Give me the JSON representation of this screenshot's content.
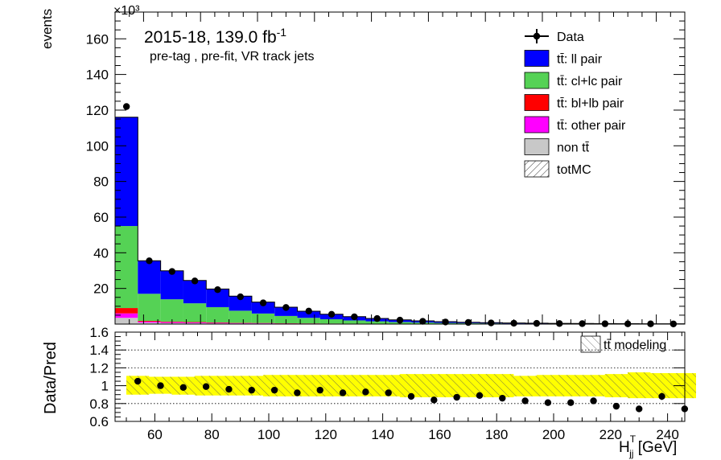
{
  "chart_data": [
    {
      "type": "bar",
      "stacked": true,
      "exponent_label": "×10³",
      "xlim": [
        50,
        250
      ],
      "ylim": [
        0,
        175
      ],
      "y_unit_multiplier": 1000,
      "ylabel": "events",
      "yticks": [
        20,
        40,
        60,
        80,
        100,
        120,
        140,
        160
      ],
      "xticks": [
        60,
        80,
        100,
        120,
        140,
        160,
        180,
        200,
        220,
        240
      ],
      "annotations": {
        "lumi_prefix": "2015-18, 139.0 fb",
        "lumi_exp": "-1",
        "region": "pre-tag ,  pre-fit, VR track jets"
      },
      "bin_edges": [
        50,
        58,
        66,
        74,
        82,
        90,
        98,
        106,
        114,
        122,
        130,
        138,
        146,
        154,
        162,
        170,
        178,
        186,
        194,
        202,
        210,
        218,
        226,
        234,
        242,
        250
      ],
      "series": [
        {
          "name": "non tt̄",
          "color": "#c8c8c8",
          "values": [
            3.5,
            0.8,
            0.6,
            0.5,
            0.4,
            0.3,
            0.3,
            0.2,
            0.2,
            0.15,
            0.12,
            0.1,
            0.08,
            0.07,
            0.05,
            0.05,
            0.04,
            0.03,
            0.03,
            0.02,
            0.02,
            0.02,
            0.01,
            0.01,
            0.01
          ]
        },
        {
          "name": "tt̄: other pair",
          "color": "#ff00ff",
          "values": [
            2.5,
            0.6,
            0.5,
            0.4,
            0.3,
            0.25,
            0.2,
            0.15,
            0.12,
            0.1,
            0.08,
            0.06,
            0.05,
            0.04,
            0.03,
            0.03,
            0.02,
            0.02,
            0.02,
            0.01,
            0.01,
            0.01,
            0.01,
            0.01,
            0.01
          ]
        },
        {
          "name": "tt̄: bl+lb pair",
          "color": "#ff0000",
          "values": [
            3.0,
            0.4,
            0.3,
            0.25,
            0.2,
            0.15,
            0.12,
            0.1,
            0.08,
            0.06,
            0.05,
            0.04,
            0.03,
            0.02,
            0.02,
            0.02,
            0.01,
            0.01,
            0.01,
            0.01,
            0.01,
            0.01,
            0.01,
            0.01,
            0.01
          ]
        },
        {
          "name": "tt̄: cl+lc pair",
          "color": "#55d255",
          "values": [
            46,
            15.2,
            12.5,
            10.5,
            8.6,
            6.8,
            5.3,
            4.1,
            3.1,
            2.4,
            1.8,
            1.35,
            1.0,
            0.75,
            0.55,
            0.42,
            0.32,
            0.25,
            0.2,
            0.16,
            0.13,
            0.1,
            0.08,
            0.07,
            0.06
          ]
        },
        {
          "name": "tt̄: ll pair",
          "color": "#0000ff",
          "values": [
            61,
            18.5,
            16.0,
            12.8,
            10.2,
            8.2,
            6.4,
            4.9,
            3.7,
            2.8,
            2.1,
            1.6,
            1.2,
            0.9,
            0.68,
            0.52,
            0.4,
            0.31,
            0.24,
            0.19,
            0.15,
            0.12,
            0.1,
            0.08,
            0.07
          ]
        }
      ],
      "data": {
        "name": "Data",
        "values": [
          122,
          35.5,
          29.5,
          24.2,
          19.3,
          15.3,
          11.9,
          9.3,
          7.3,
          5.5,
          4.1,
          3.1,
          2.2,
          1.55,
          1.17,
          0.9,
          0.65,
          0.5,
          0.4,
          0.31,
          0.25,
          0.18,
          0.14,
          0.13,
          0.1
        ]
      },
      "legend": {
        "placement": "top-right",
        "entries": [
          {
            "label": "Data",
            "style": "marker"
          },
          {
            "label": "tt̄: ll pair",
            "style": "box",
            "color": "#0000ff"
          },
          {
            "label": "tt̄: cl+lc pair",
            "style": "box",
            "color": "#55d255"
          },
          {
            "label": "tt̄: bl+lb pair",
            "style": "box",
            "color": "#ff0000"
          },
          {
            "label": "tt̄: other pair",
            "style": "box",
            "color": "#ff00ff"
          },
          {
            "label": "non tt̄",
            "style": "box",
            "color": "#c8c8c8"
          },
          {
            "label": "totMC",
            "style": "hatch"
          }
        ]
      }
    },
    {
      "type": "scatter",
      "xlim": [
        50,
        250
      ],
      "ylim": [
        0.6,
        1.6
      ],
      "xlabel": "H",
      "xlabel_sup": "T",
      "xlabel_sub": "jj",
      "xlabel_unit": " [GeV]",
      "ylabel": "Data/Pred",
      "yticks": [
        0.6,
        0.8,
        1,
        1.2,
        1.4,
        1.6
      ],
      "ytick_labels": [
        "0.6",
        "0.8",
        "1",
        "1.2",
        "1.4",
        "1.6"
      ],
      "xticks": [
        60,
        80,
        100,
        120,
        140,
        160,
        180,
        200,
        220,
        240
      ],
      "gridlines_y": [
        0.8,
        1.0,
        1.2,
        1.4
      ],
      "grid": "dotted horizontal",
      "x": [
        54,
        62,
        70,
        78,
        86,
        94,
        102,
        110,
        118,
        126,
        134,
        142,
        150,
        158,
        166,
        174,
        182,
        190,
        198,
        206,
        214,
        222,
        230,
        238,
        246
      ],
      "ratio": [
        1.05,
        1.0,
        0.98,
        0.99,
        0.96,
        0.95,
        0.95,
        0.92,
        0.95,
        0.92,
        0.93,
        0.92,
        0.88,
        0.84,
        0.87,
        0.89,
        0.86,
        0.83,
        0.81,
        0.81,
        0.83,
        0.77,
        0.74,
        0.88,
        0.74
      ],
      "ratio_err": [
        0,
        0,
        0,
        0,
        0,
        0,
        0,
        0,
        0,
        0,
        0,
        0,
        0,
        0,
        0,
        0,
        0,
        0,
        0,
        0,
        0,
        0,
        0,
        0.04,
        0
      ],
      "band_lo": [
        0.9,
        0.91,
        0.9,
        0.89,
        0.89,
        0.89,
        0.88,
        0.88,
        0.88,
        0.88,
        0.88,
        0.88,
        0.87,
        0.87,
        0.87,
        0.87,
        0.87,
        0.88,
        0.88,
        0.88,
        0.88,
        0.87,
        0.86,
        0.86,
        0.86
      ],
      "band_hi": [
        1.11,
        1.1,
        1.1,
        1.11,
        1.11,
        1.11,
        1.12,
        1.12,
        1.12,
        1.12,
        1.12,
        1.12,
        1.13,
        1.13,
        1.13,
        1.13,
        1.13,
        1.11,
        1.12,
        1.12,
        1.12,
        1.13,
        1.15,
        1.14,
        1.14
      ],
      "band_color": "#ffff00",
      "legend": {
        "label": "tt̄ modeling",
        "placement": "top-right"
      }
    }
  ]
}
